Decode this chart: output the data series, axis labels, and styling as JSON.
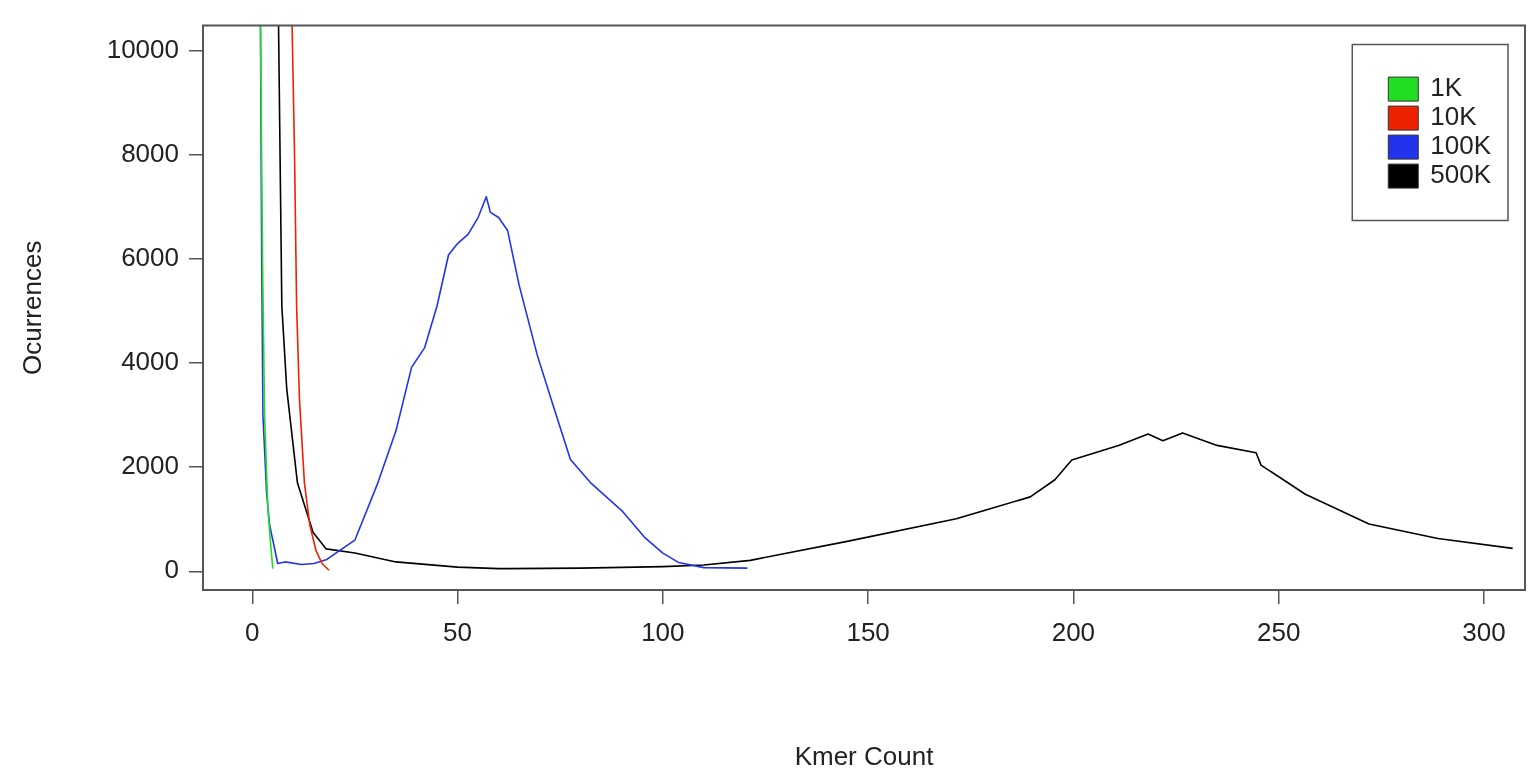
{
  "chart_data": {
    "type": "line",
    "xlabel": "Kmer Count",
    "ylabel": "Ocurrences",
    "xlim": [
      -12,
      310
    ],
    "ylim": [
      -360,
      10490
    ],
    "xticks": [
      0,
      50,
      100,
      150,
      200,
      250,
      300
    ],
    "yticks": [
      0,
      2000,
      4000,
      6000,
      8000,
      10000
    ],
    "grid": false,
    "legend": "top right",
    "marker": "none",
    "line_style": "solid",
    "series": [
      {
        "name": "1K",
        "color": "#22dd22",
        "x": [
          2,
          2.5,
          3,
          3.8,
          4.5,
          5
        ],
        "values": [
          10490,
          6000,
          3000,
          1200,
          500,
          50
        ]
      },
      {
        "name": "10K",
        "color": "#ee2200",
        "x": [
          9.7,
          10.3,
          10.8,
          11.5,
          12.7,
          14,
          15.5,
          17,
          18.7
        ],
        "values": [
          10490,
          8000,
          5100,
          3300,
          1700,
          900,
          400,
          150,
          20
        ]
      },
      {
        "name": "100K",
        "color": "#2233ee",
        "x": [
          2,
          2.3,
          2.6,
          3.5,
          4.2,
          6.2,
          8,
          12,
          15,
          18,
          20,
          25,
          30.4,
          35,
          38.8,
          42,
          45,
          47.8,
          50,
          52.6,
          55,
          57,
          58,
          60,
          62.2,
          65,
          69.4,
          73.4,
          77.5,
          82.3,
          90.2,
          95.7,
          100,
          103.8,
          110,
          120.6
        ],
        "values": [
          10490,
          6000,
          3000,
          1500,
          900,
          150,
          180,
          130,
          150,
          220,
          330,
          600,
          1660,
          2700,
          3920,
          4300,
          5100,
          6080,
          6300,
          6480,
          6800,
          7200,
          6900,
          6800,
          6550,
          5500,
          4160,
          3160,
          2150,
          1710,
          1150,
          640,
          350,
          170,
          70,
          60
        ]
      },
      {
        "name": "500K",
        "color": "#000000",
        "x": [
          6.4,
          7.2,
          8.4,
          11,
          14.8,
          18,
          25,
          35,
          50,
          60,
          80,
          100,
          110,
          121.3,
          145.2,
          171.5,
          189.5,
          195.5,
          199.6,
          211,
          218.2,
          221.8,
          226.6,
          235,
          244.5,
          245.7,
          256.5,
          272,
          288.8,
          307
        ],
        "values": [
          10490,
          5100,
          3500,
          1700,
          750,
          430,
          350,
          180,
          80,
          50,
          60,
          90,
          120,
          210,
          580,
          1010,
          1430,
          1760,
          2140,
          2420,
          2640,
          2510,
          2660,
          2420,
          2280,
          2040,
          1480,
          910,
          630,
          440
        ]
      }
    ]
  }
}
